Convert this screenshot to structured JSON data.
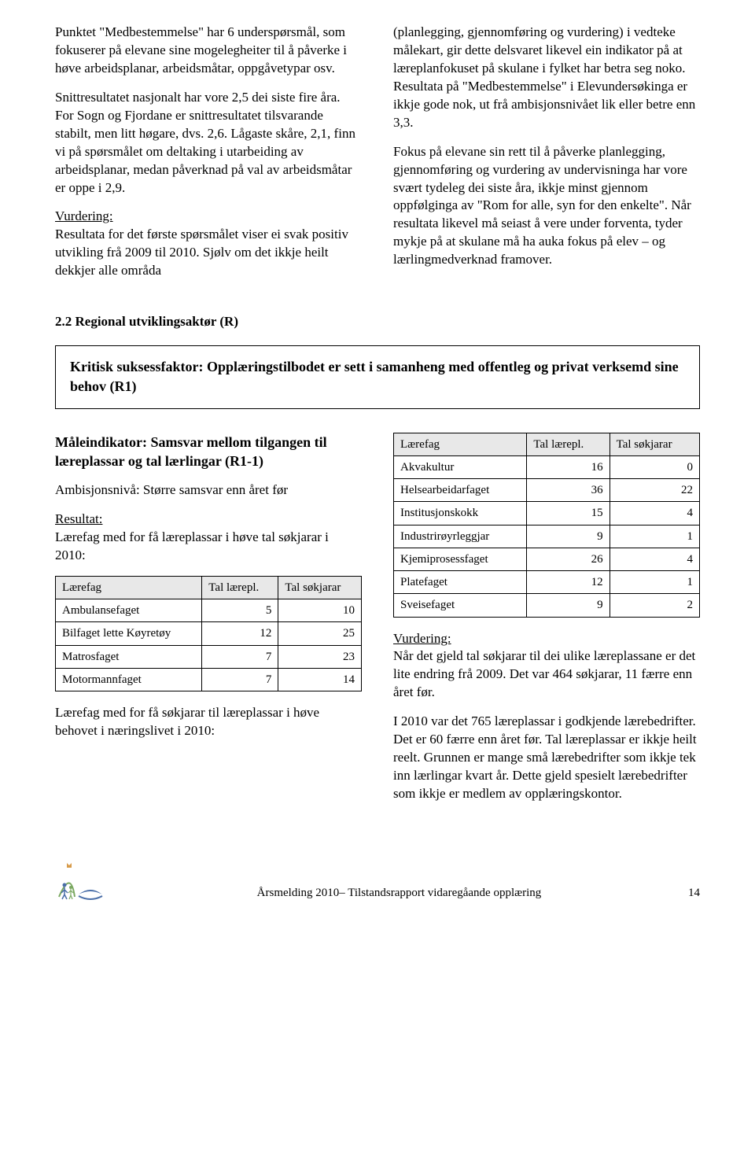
{
  "top_left": {
    "p1a": "Punktet \"Medbestemmelse\" har 6 underspørsmål, som fokuserer på elevane sine mogelegheiter til å påverke i høve arbeidsplanar, arbeidsmåtar, oppgåvetypar osv.",
    "p1b": "Snittresultatet nasjonalt har vore 2,5 dei siste fire åra. For Sogn og Fjordane er snittresultatet tilsvarande stabilt, men litt høgare, dvs. 2,6. Lågaste skåre, 2,1, finn vi på spørsmålet om deltaking i utarbeiding av arbeidsplanar, medan påverknad på val av arbeidsmåtar er oppe i 2,9.",
    "vurdering_label": "Vurdering:",
    "p2": "Resultata for det første spørsmålet viser ei svak positiv utvikling frå 2009 til 2010. Sjølv om det ikkje heilt dekkjer alle områda"
  },
  "top_right": {
    "p1": "(planlegging, gjennomføring og vurdering) i vedteke målekart, gir dette delsvaret likevel ein indikator på at læreplanfokuset på skulane i fylket har betra seg noko. Resultata på \"Medbestemmelse\" i Elevundersøkinga er ikkje gode nok, ut frå ambisjonsnivået lik eller betre enn 3,3.",
    "p2": "Fokus på elevane sin rett til å påverke planlegging, gjennomføring og vurdering av undervisninga har vore svært tydeleg dei siste åra, ikkje minst gjennom oppfølginga av \"Rom for alle, syn for den enkelte\". Når resultata likevel må seiast å vere under forventa, tyder mykje på at skulane må ha auka fokus på elev – og lærlingmedverknad framover."
  },
  "section_heading": "2.2 Regional utviklingsaktør (R)",
  "boxed": "Kritisk suksessfaktor: Opplæringstilbodet er sett i samanheng med offentleg og privat verksemd sine behov (R1)",
  "mid_left": {
    "heading": "Måleindikator: Samsvar mellom tilgangen til læreplassar og tal lærlingar (R1-1)",
    "amb": "Ambisjonsnivå: Større samsvar enn året før",
    "resultat_label": "Resultat:",
    "p1": "Lærefag med for få læreplassar i høve tal søkjarar i 2010:",
    "table1": {
      "headers": [
        "Lærefag",
        "Tal lærepl.",
        "Tal søkjarar"
      ],
      "rows": [
        [
          "Ambulansefaget",
          "5",
          "10"
        ],
        [
          "Bilfaget lette Køyretøy",
          "12",
          "25"
        ],
        [
          "Matrosfaget",
          "7",
          "23"
        ],
        [
          "Motormannfaget",
          "7",
          "14"
        ]
      ]
    },
    "p2": "Lærefag med for få søkjarar til læreplassar i høve behovet i næringslivet i 2010:"
  },
  "mid_right": {
    "table2": {
      "headers": [
        "Lærefag",
        "Tal lærepl.",
        "Tal søkjarar"
      ],
      "rows": [
        [
          "Akvakultur",
          "16",
          "0"
        ],
        [
          "Helsearbeidarfaget",
          "36",
          "22"
        ],
        [
          "Institusjonskokk",
          "15",
          "4"
        ],
        [
          "Industrirøyrleggjar",
          "9",
          "1"
        ],
        [
          "Kjemiprosessfaget",
          "26",
          "4"
        ],
        [
          "Platefaget",
          "12",
          "1"
        ],
        [
          "Sveisefaget",
          "9",
          "2"
        ]
      ]
    },
    "vurdering_label": "Vurdering:",
    "p1": "Når det gjeld tal søkjarar til dei ulike læreplassane er det lite endring frå 2009. Det var 464 søkjarar, 11 færre enn året før.",
    "p2": "I 2010 var det 765 læreplassar i godkjende lærebedrifter. Det er 60 færre enn året før. Tal læreplassar er ikkje heilt reelt. Grunnen er mange små lærebedrifter som ikkje tek inn lærlingar kvart år. Dette gjeld spesielt lærebedrifter som ikkje er medlem av opplæringskontor."
  },
  "footer": {
    "text": "Årsmelding 2010– Tilstandsrapport vidaregåande opplæring",
    "page": "14"
  }
}
